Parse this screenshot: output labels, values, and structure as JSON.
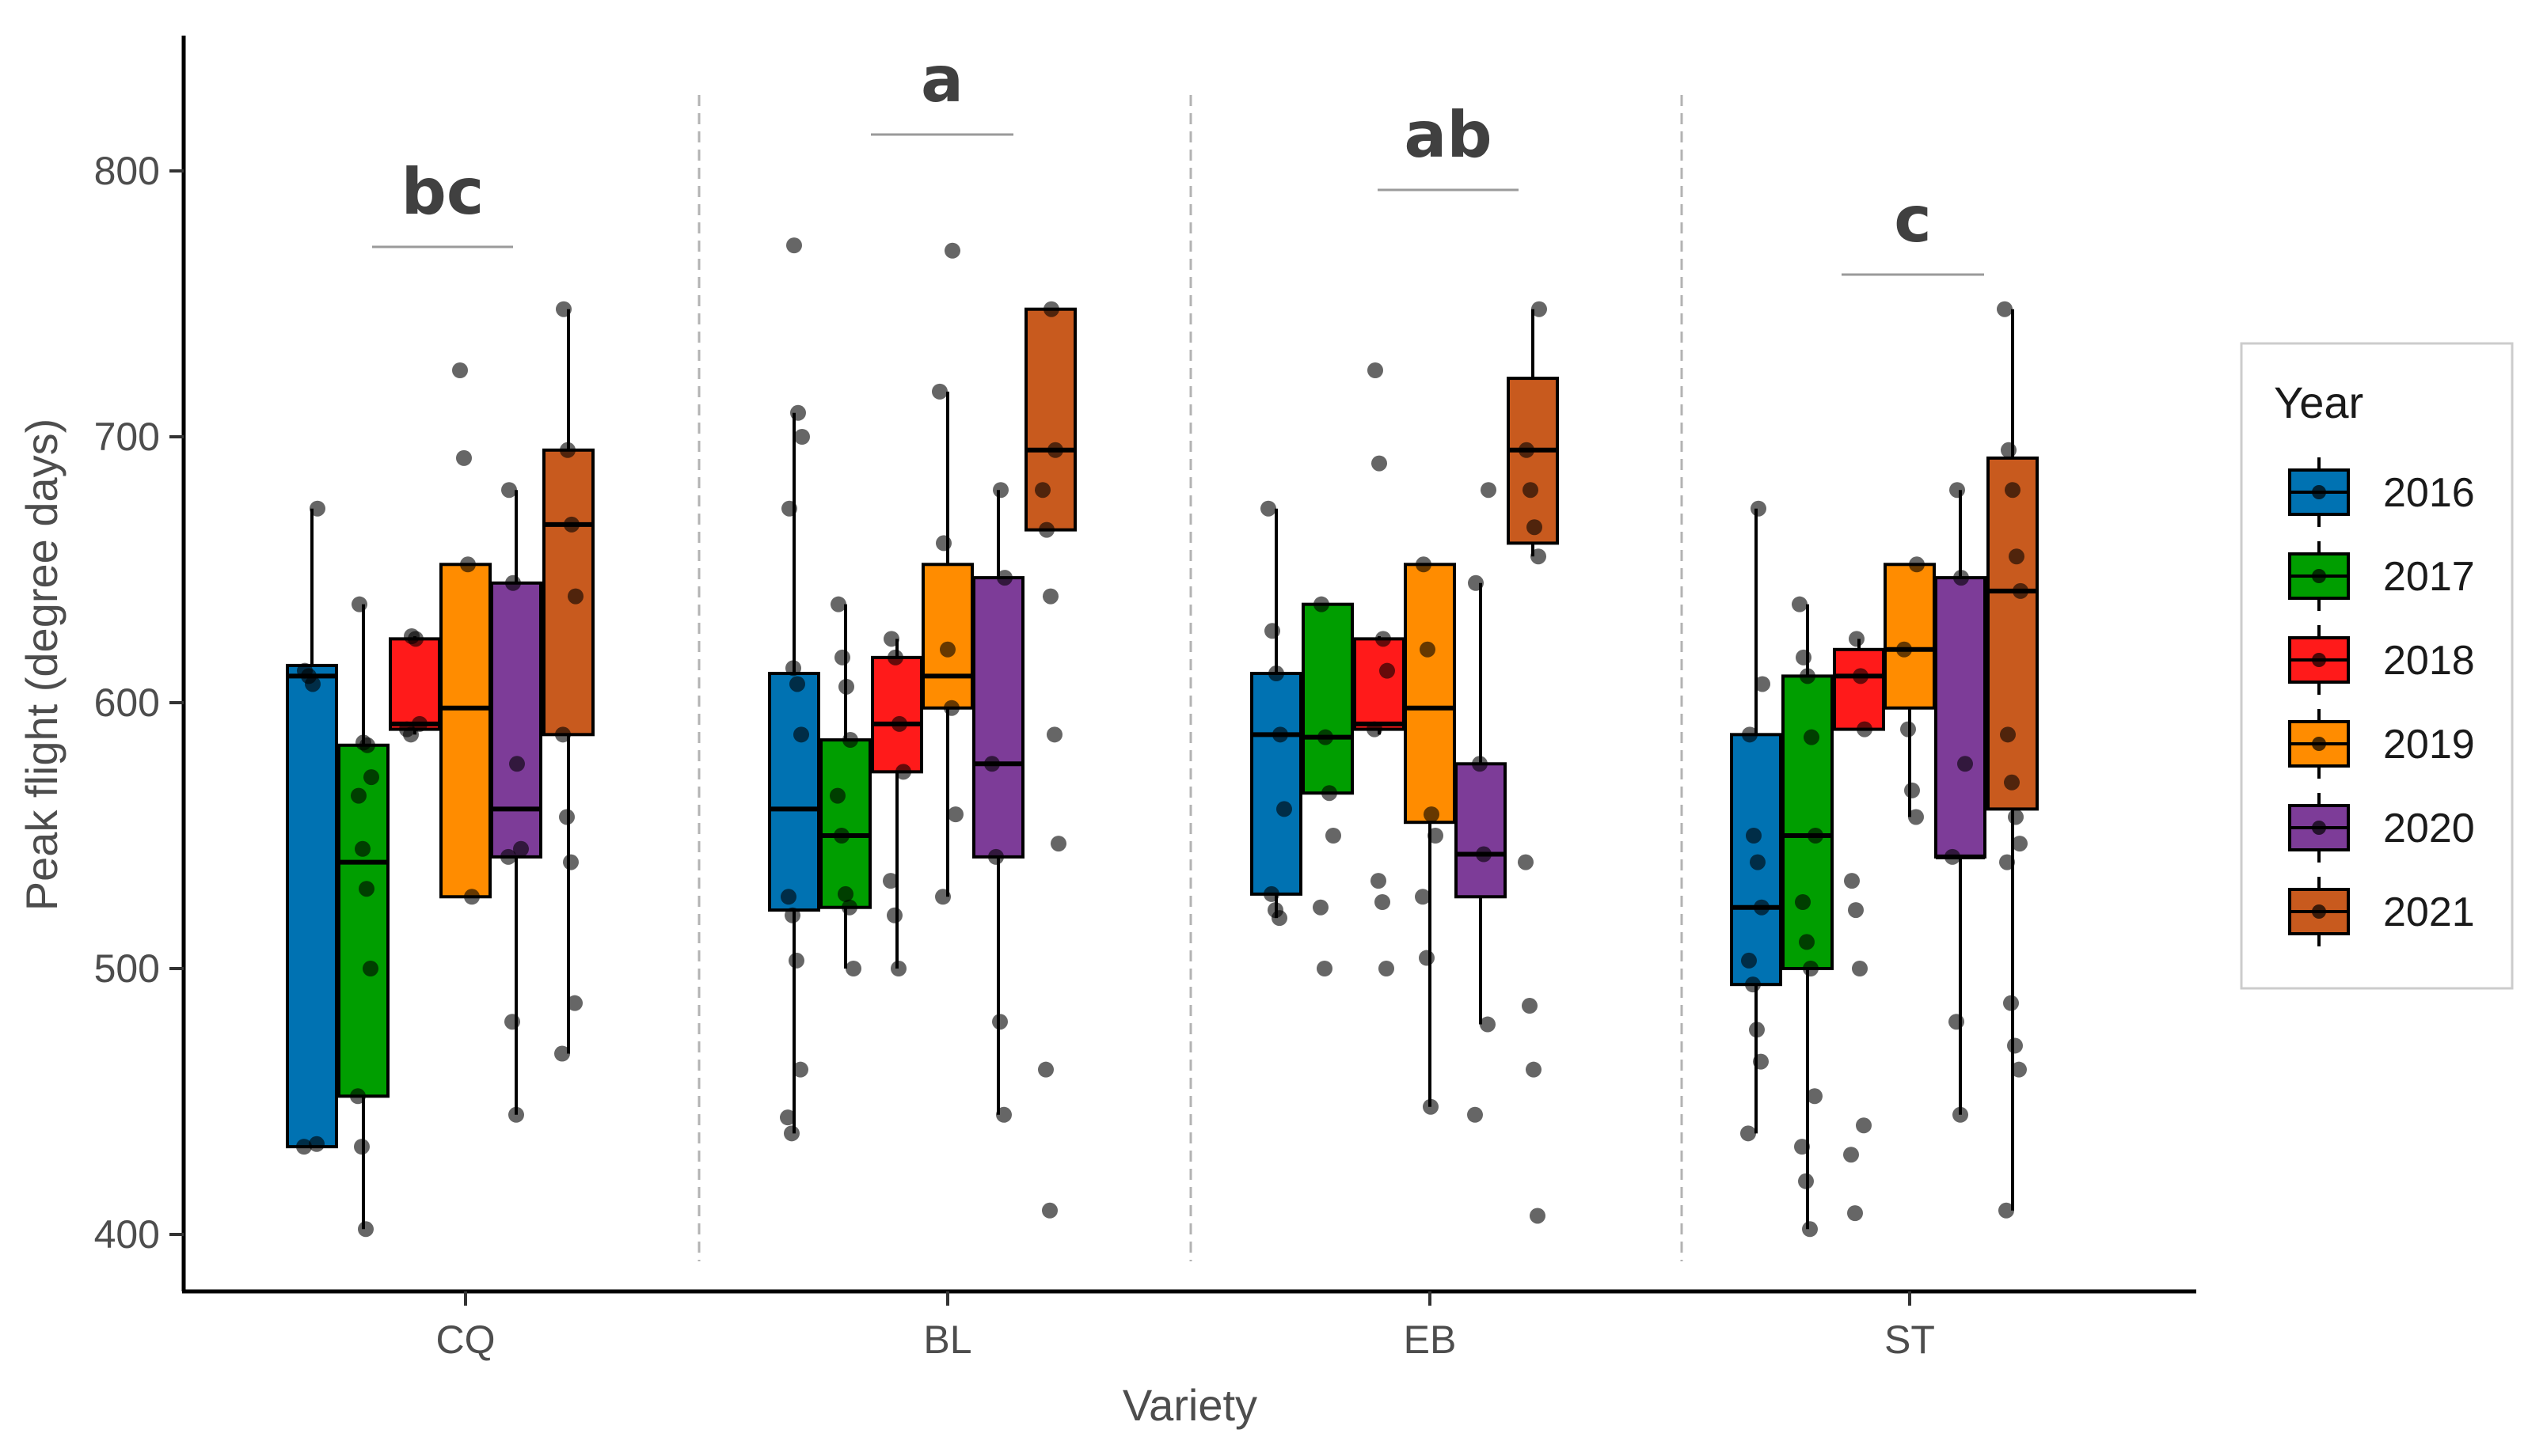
{
  "chart_data": {
    "type": "boxplot",
    "xlabel": "Variety",
    "ylabel": "Peak flight (degree days)",
    "ylim": [
      380,
      850
    ],
    "yticks": [
      400,
      500,
      600,
      700,
      800
    ],
    "ytick_labels": [
      "400",
      "500",
      "600",
      "700",
      "800"
    ],
    "categories": [
      "CQ",
      "BL",
      "EB",
      "ST"
    ],
    "significance": [
      "bc",
      "a",
      "ab",
      "c"
    ],
    "legend": {
      "title": "Year",
      "position": "right"
    },
    "series": [
      {
        "name": "2016",
        "color": "#0072B2"
      },
      {
        "name": "2017",
        "color": "#009E00"
      },
      {
        "name": "2018",
        "color": "#FF1A1A"
      },
      {
        "name": "2019",
        "color": "#FF8C00"
      },
      {
        "name": "2020",
        "color": "#7D3C98"
      },
      {
        "name": "2021",
        "color": "#C85A1E"
      }
    ],
    "groups": [
      {
        "category": "CQ",
        "boxes": [
          {
            "year": "2016",
            "min": 433,
            "q1": 433,
            "median": 610,
            "q3": 614,
            "max": 673,
            "points": [
              433,
              434,
              607,
              610,
              612,
              673
            ]
          },
          {
            "year": "2017",
            "min": 402,
            "q1": 452,
            "median": 540,
            "q3": 584,
            "max": 637,
            "points": [
              402,
              433,
              452,
              500,
              530,
              545,
              565,
              572,
              584,
              585,
              637
            ]
          },
          {
            "year": "2018",
            "min": 588,
            "q1": 590,
            "median": 592,
            "q3": 624,
            "max": 625,
            "points": [
              588,
              590,
              592,
              624,
              625
            ]
          },
          {
            "year": "2019",
            "min": 527,
            "q1": 527,
            "median": 598,
            "q3": 652,
            "max": 652,
            "points": [
              527,
              652,
              692,
              725
            ]
          },
          {
            "year": "2020",
            "min": 445,
            "q1": 542,
            "median": 560,
            "q3": 645,
            "max": 680,
            "points": [
              445,
              480,
              542,
              545,
              577,
              645,
              680
            ]
          },
          {
            "year": "2021",
            "min": 468,
            "q1": 588,
            "median": 667,
            "q3": 695,
            "max": 748,
            "points": [
              468,
              487,
              540,
              557,
              588,
              640,
              667,
              695,
              748
            ]
          }
        ]
      },
      {
        "category": "BL",
        "boxes": [
          {
            "year": "2016",
            "min": 438,
            "q1": 522,
            "median": 560,
            "q3": 611,
            "max": 709,
            "points": [
              438,
              444,
              462,
              503,
              520,
              527,
              588,
              607,
              613,
              673,
              700,
              709,
              772
            ]
          },
          {
            "year": "2017",
            "min": 500,
            "q1": 523,
            "median": 550,
            "q3": 586,
            "max": 637,
            "points": [
              500,
              523,
              528,
              550,
              565,
              586,
              606,
              617,
              637
            ]
          },
          {
            "year": "2018",
            "min": 500,
            "q1": 574,
            "median": 592,
            "q3": 617,
            "max": 624,
            "points": [
              500,
              520,
              533,
              574,
              592,
              617,
              624
            ]
          },
          {
            "year": "2019",
            "min": 527,
            "q1": 598,
            "median": 610,
            "q3": 652,
            "max": 717,
            "points": [
              527,
              558,
              598,
              620,
              660,
              717,
              770
            ]
          },
          {
            "year": "2020",
            "min": 445,
            "q1": 542,
            "median": 577,
            "q3": 647,
            "max": 680,
            "points": [
              445,
              480,
              542,
              577,
              647,
              680
            ]
          },
          {
            "year": "2021",
            "min": 665,
            "q1": 665,
            "median": 695,
            "q3": 748,
            "max": 748,
            "points": [
              409,
              462,
              547,
              588,
              640,
              665,
              680,
              695,
              748
            ]
          }
        ]
      },
      {
        "category": "EB",
        "boxes": [
          {
            "year": "2016",
            "min": 519,
            "q1": 528,
            "median": 588,
            "q3": 611,
            "max": 673,
            "points": [
              519,
              522,
              528,
              560,
              588,
              611,
              627,
              673
            ]
          },
          {
            "year": "2017",
            "min": 566,
            "q1": 566,
            "median": 587,
            "q3": 637,
            "max": 637,
            "points": [
              500,
              523,
              550,
              566,
              587,
              637
            ]
          },
          {
            "year": "2018",
            "min": 588,
            "q1": 590,
            "median": 592,
            "q3": 624,
            "max": 625,
            "points": [
              500,
              525,
              533,
              590,
              612,
              624,
              690,
              725
            ]
          },
          {
            "year": "2019",
            "min": 448,
            "q1": 555,
            "median": 598,
            "q3": 652,
            "max": 652,
            "points": [
              448,
              504,
              527,
              550,
              558,
              620,
              652
            ]
          },
          {
            "year": "2020",
            "min": 479,
            "q1": 527,
            "median": 543,
            "q3": 577,
            "max": 645,
            "points": [
              445,
              479,
              543,
              577,
              645,
              680
            ]
          },
          {
            "year": "2021",
            "min": 655,
            "q1": 660,
            "median": 695,
            "q3": 722,
            "max": 748,
            "points": [
              407,
              462,
              486,
              540,
              655,
              666,
              680,
              695,
              748
            ]
          }
        ]
      },
      {
        "category": "ST",
        "boxes": [
          {
            "year": "2016",
            "min": 438,
            "q1": 494,
            "median": 523,
            "q3": 588,
            "max": 673,
            "points": [
              438,
              465,
              477,
              494,
              503,
              523,
              540,
              550,
              588,
              607,
              673
            ]
          },
          {
            "year": "2017",
            "min": 402,
            "q1": 500,
            "median": 550,
            "q3": 610,
            "max": 637,
            "points": [
              402,
              420,
              433,
              452,
              500,
              510,
              525,
              550,
              587,
              610,
              617,
              637
            ]
          },
          {
            "year": "2018",
            "min": 590,
            "q1": 590,
            "median": 610,
            "q3": 620,
            "max": 624,
            "points": [
              408,
              430,
              441,
              500,
              522,
              533,
              590,
              610,
              624
            ]
          },
          {
            "year": "2019",
            "min": 557,
            "q1": 598,
            "median": 620,
            "q3": 652,
            "max": 652,
            "points": [
              557,
              567,
              590,
              620,
              652
            ]
          },
          {
            "year": "2020",
            "min": 445,
            "q1": 542,
            "median": 542,
            "q3": 647,
            "max": 680,
            "points": [
              445,
              480,
              542,
              577,
              647,
              680
            ]
          },
          {
            "year": "2021",
            "min": 409,
            "q1": 560,
            "median": 642,
            "q3": 692,
            "max": 748,
            "points": [
              409,
              462,
              471,
              487,
              540,
              547,
              557,
              570,
              588,
              642,
              655,
              680,
              695,
              748
            ]
          }
        ]
      }
    ]
  }
}
